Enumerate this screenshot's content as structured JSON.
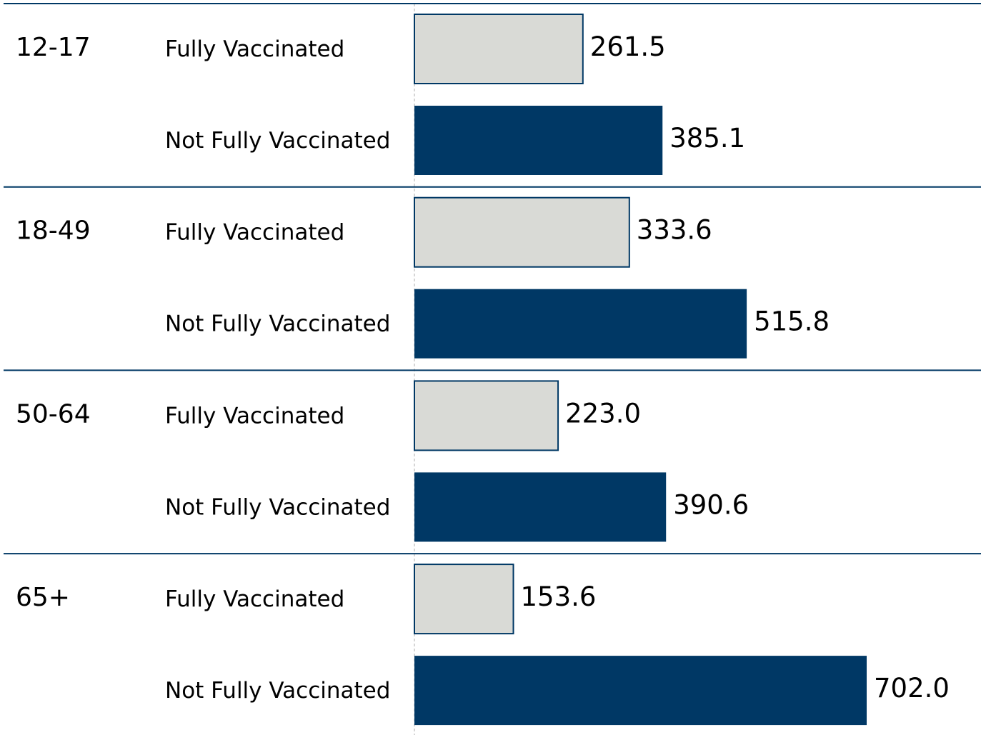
{
  "chart_data": {
    "type": "bar",
    "orientation": "horizontal",
    "categories": [
      "12-17",
      "18-49",
      "50-64",
      "65+"
    ],
    "series": [
      {
        "name": "Fully Vaccinated",
        "color": "#d9dad6",
        "edgecolor": "#003865",
        "values": [
          261.5,
          333.6,
          223.0,
          153.6
        ],
        "value_labels": [
          "261.5",
          "333.6",
          "223.0",
          "153.6"
        ]
      },
      {
        "name": "Not Fully Vaccinated",
        "color": "#003865",
        "values": [
          385.1,
          515.8,
          390.6,
          702.0
        ],
        "value_labels": [
          "385.1",
          "515.8",
          "390.6",
          "702.0"
        ]
      }
    ]
  }
}
